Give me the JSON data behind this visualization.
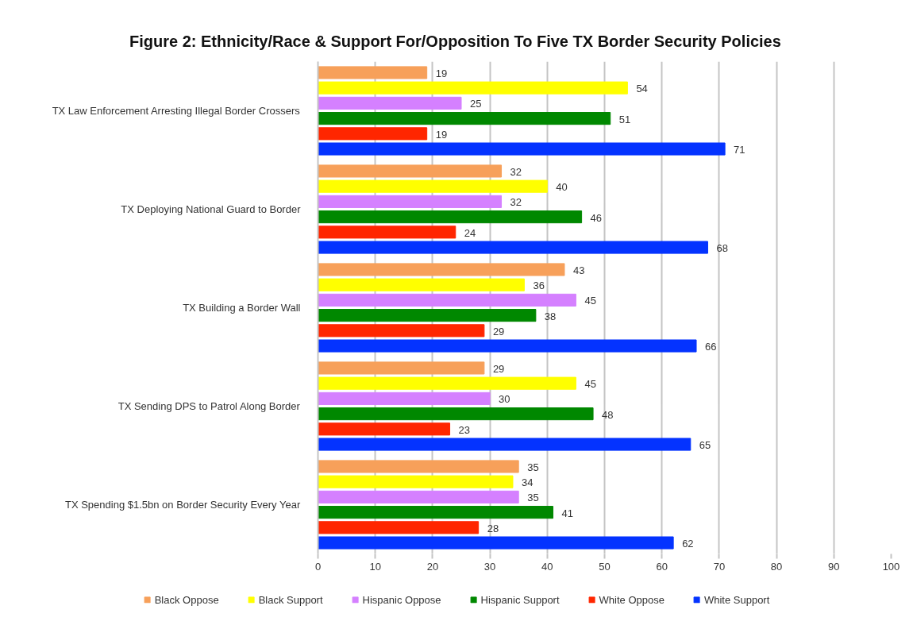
{
  "chart_data": {
    "type": "bar",
    "orientation": "horizontal",
    "title": "Figure 2: Ethnicity/Race & Support For/Opposition To Five TX Border Security Policies",
    "categories": [
      "TX Law Enforcement Arresting Illegal Border Crossers",
      "TX Deploying National Guard to Border",
      "TX Building a Border Wall",
      "TX Sending DPS to Patrol Along Border",
      "TX Spending $1.5bn on Border Security Every Year"
    ],
    "series": [
      {
        "name": "Black Oppose",
        "color": "#f7a05a",
        "values": [
          19,
          32,
          43,
          29,
          35
        ]
      },
      {
        "name": "Black Support",
        "color": "#ffff00",
        "values": [
          54,
          40,
          36,
          45,
          34
        ]
      },
      {
        "name": "Hispanic Oppose",
        "color": "#d580ff",
        "values": [
          25,
          32,
          45,
          30,
          35
        ]
      },
      {
        "name": "Hispanic Support",
        "color": "#008800",
        "values": [
          51,
          46,
          38,
          48,
          41
        ]
      },
      {
        "name": "White Oppose",
        "color": "#ff2600",
        "values": [
          19,
          24,
          29,
          23,
          28
        ]
      },
      {
        "name": "White Support",
        "color": "#0433ff",
        "values": [
          71,
          68,
          66,
          65,
          62
        ]
      }
    ],
    "xlim": [
      0,
      100
    ],
    "xticks": [
      0,
      10,
      20,
      30,
      40,
      50,
      60,
      70,
      80,
      90,
      100
    ],
    "grid": "x",
    "legend": "bottom",
    "data_labels": true
  }
}
